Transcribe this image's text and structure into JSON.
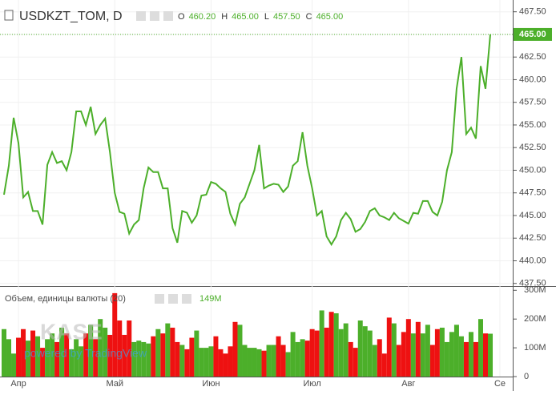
{
  "chart_data": {
    "type": "line",
    "title": "USDKZT_TOM, D",
    "ohlc": [
      {
        "key": "O",
        "value": "460.20"
      },
      {
        "key": "H",
        "value": "465.00"
      },
      {
        "key": "L",
        "value": "457.50"
      },
      {
        "key": "C",
        "value": "465.00"
      }
    ],
    "last_price": {
      "value": 465,
      "label": "465.00"
    },
    "color": "#4caf2a",
    "categories": [
      null,
      null,
      null,
      "Апр",
      null,
      null,
      null,
      null,
      null,
      null,
      null,
      null,
      null,
      null,
      null,
      null,
      null,
      null,
      null,
      null,
      null,
      null,
      null,
      "Май",
      null,
      null,
      null,
      null,
      null,
      null,
      null,
      null,
      null,
      null,
      null,
      null,
      null,
      null,
      null,
      null,
      null,
      null,
      null,
      "Июн",
      null,
      null,
      null,
      null,
      null,
      null,
      null,
      null,
      null,
      null,
      null,
      null,
      null,
      null,
      null,
      null,
      null,
      null,
      null,
      null,
      "Июл",
      null,
      null,
      null,
      null,
      null,
      null,
      null,
      null,
      null,
      null,
      null,
      null,
      null,
      null,
      null,
      null,
      null,
      null,
      null,
      "Авг",
      null,
      null,
      null,
      null,
      null,
      null,
      null,
      null,
      null,
      null,
      null,
      null,
      null,
      null,
      null,
      null,
      null,
      null,
      "Се"
    ],
    "values": [
      447.3,
      450.5,
      455.8,
      453,
      447,
      447.6,
      445.5,
      445.5,
      444,
      450.6,
      452,
      450.8,
      451,
      450,
      452,
      456.5,
      456.5,
      455,
      457,
      454,
      455,
      455.7,
      452,
      447.5,
      445.4,
      445.2,
      443,
      444,
      444.5,
      448,
      450.3,
      449.8,
      449.8,
      448,
      448,
      443.6,
      442,
      445.5,
      445.3,
      444.2,
      445,
      447.2,
      447.3,
      448.7,
      448.5,
      448,
      447.6,
      445.2,
      444,
      446.3,
      447,
      448.5,
      450,
      452.8,
      448,
      448.3,
      448.5,
      448.4,
      447.6,
      448.2,
      450.5,
      451,
      454.2,
      450.5,
      448,
      445,
      445.5,
      442.7,
      441.8,
      442.7,
      444.5,
      445.3,
      444.6,
      443.2,
      443.5,
      444.3,
      445.5,
      445.8,
      445,
      444.8,
      444.5,
      445.3,
      444.7,
      444.4,
      444.1,
      445.3,
      445.2,
      446.6,
      446.6,
      445.4,
      445,
      446.5,
      450,
      452,
      459,
      462.5,
      454,
      454.7,
      453.5,
      461.5,
      459,
      465,
      null,
      null
    ],
    "ylim": [
      437.3,
      468.8
    ],
    "yticks": [
      {
        "value": 437.5,
        "label": "437.50"
      },
      {
        "value": 440,
        "label": "440.00"
      },
      {
        "value": 442.5,
        "label": "442.50"
      },
      {
        "value": 445,
        "label": "445.00"
      },
      {
        "value": 447.5,
        "label": "447.50"
      },
      {
        "value": 450,
        "label": "450.00"
      },
      {
        "value": 452.5,
        "label": "452.50"
      },
      {
        "value": 455,
        "label": "455.00"
      },
      {
        "value": 457.5,
        "label": "457.50"
      },
      {
        "value": 460,
        "label": "460.00"
      },
      {
        "value": 462.5,
        "label": "462.50"
      },
      {
        "value": 465,
        "label": "465.00"
      },
      {
        "value": 467.5,
        "label": "467.50"
      }
    ],
    "volume": {
      "title": "Объем, единицы валюты (20)",
      "last_label": "149M",
      "up_color": "#4caf2a",
      "down_color": "#ee1111",
      "values": [
        165000000.0,
        130000000.0,
        80000000.0,
        135000000.0,
        165000000.0,
        125000000.0,
        160000000.0,
        140000000.0,
        100000000.0,
        130000000.0,
        150000000.0,
        120000000.0,
        170000000.0,
        150000000.0,
        95000000.0,
        130000000.0,
        105000000.0,
        150000000.0,
        180000000.0,
        130000000.0,
        200000000.0,
        170000000.0,
        145000000.0,
        290000000.0,
        195000000.0,
        145000000.0,
        195000000.0,
        120000000.0,
        125000000.0,
        120000000.0,
        115000000.0,
        140000000.0,
        165000000.0,
        150000000.0,
        185000000.0,
        170000000.0,
        120000000.0,
        110000000.0,
        95000000.0,
        135000000.0,
        160000000.0,
        100000000.0,
        100000000.0,
        105000000.0,
        140000000.0,
        95000000.0,
        80000000.0,
        105000000.0,
        190000000.0,
        180000000.0,
        110000000.0,
        100000000.0,
        100000000.0,
        95000000.0,
        90000000.0,
        110000000.0,
        110000000.0,
        140000000.0,
        110000000.0,
        85000000.0,
        155000000.0,
        120000000.0,
        130000000.0,
        125000000.0,
        165000000.0,
        160000000.0,
        230000000.0,
        170000000.0,
        225000000.0,
        220000000.0,
        165000000.0,
        185000000.0,
        120000000.0,
        100000000.0,
        195000000.0,
        175000000.0,
        160000000.0,
        110000000.0,
        130000000.0,
        80000000.0,
        205000000.0,
        185000000.0,
        110000000.0,
        155000000.0,
        200000000.0,
        150000000.0,
        190000000.0,
        150000000.0,
        180000000.0,
        110000000.0,
        165000000.0,
        170000000.0,
        120000000.0,
        155000000.0,
        180000000.0,
        140000000.0,
        120000000.0,
        155000000.0,
        120000000.0,
        200000000.0,
        150000000.0,
        149000000.0,
        null,
        null
      ],
      "ylim": [
        0,
        312000000.0
      ],
      "yticks": [
        {
          "value": 0,
          "label": "0"
        },
        {
          "value": 100000000.0,
          "label": "100M"
        },
        {
          "value": 200000000.0,
          "label": "200M"
        },
        {
          "value": 300000000.0,
          "label": "300M"
        }
      ]
    },
    "watermark": "KASE",
    "powered_by": "powered by TradingView"
  }
}
